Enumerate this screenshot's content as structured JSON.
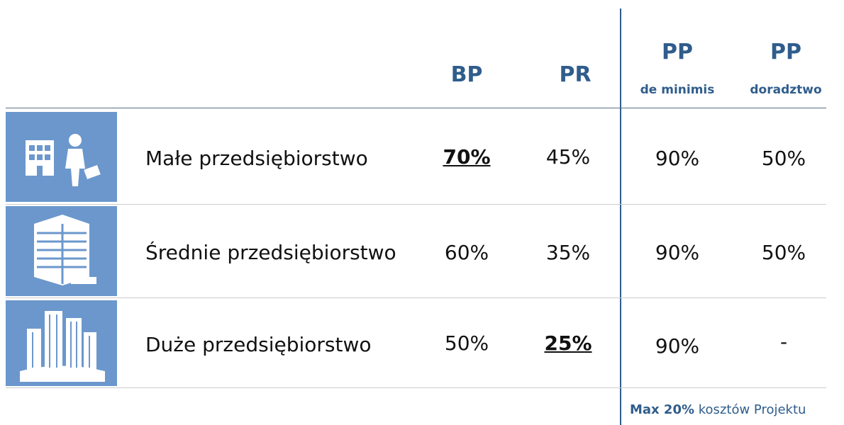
{
  "table": {
    "headers": [
      {
        "title": "BP"
      },
      {
        "title": "PR"
      },
      {
        "title": "PP",
        "subtitle": "de minimis"
      },
      {
        "title": "PP",
        "subtitle": "doradztwo"
      }
    ],
    "rows": [
      [
        "Małe przedsiębiorstwo",
        "70%",
        "45%",
        "90%",
        "50%"
      ],
      [
        "Średnie przedsiębiorstwo",
        "60%",
        "35%",
        "90%",
        "50%"
      ],
      [
        "Duże przedsiębiorstwo",
        "50%",
        "25%",
        "90%",
        "-"
      ]
    ]
  },
  "note": {
    "bold": "Max 20%",
    "text": "kosztów Projektu"
  }
}
